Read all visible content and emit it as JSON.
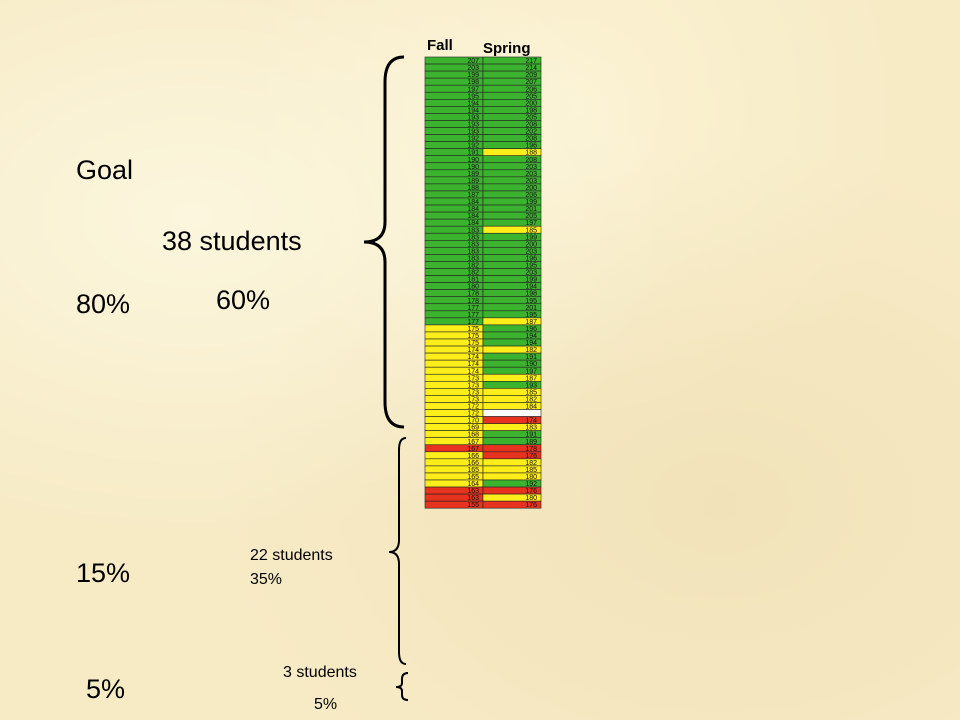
{
  "labels": {
    "goal": "Goal",
    "pct80": "80%",
    "pct15": "15%",
    "pct5": "5%",
    "group1_count": "38 students",
    "group1_pct": "60%",
    "group2_count": "22 students",
    "group2_pct": "35%",
    "group3_count": "3 students",
    "group3_pct": "5%"
  },
  "colors": {
    "green": "#3cb32f",
    "yellow": "#ffee1a",
    "red": "#e6321e",
    "white": "#ffffff",
    "background": "#f7ebc6"
  },
  "chart_data": {
    "type": "table",
    "columns": [
      "Fall",
      "Spring"
    ],
    "rows": [
      {
        "fall": "207",
        "spring": "217",
        "fall_color": "green",
        "spring_color": "green"
      },
      {
        "fall": "203",
        "spring": "214",
        "fall_color": "green",
        "spring_color": "green"
      },
      {
        "fall": "199",
        "spring": "209",
        "fall_color": "green",
        "spring_color": "green"
      },
      {
        "fall": "198",
        "spring": "207",
        "fall_color": "green",
        "spring_color": "green"
      },
      {
        "fall": "197",
        "spring": "206",
        "fall_color": "green",
        "spring_color": "green"
      },
      {
        "fall": "195",
        "spring": "205",
        "fall_color": "green",
        "spring_color": "green"
      },
      {
        "fall": "194",
        "spring": "200",
        "fall_color": "green",
        "spring_color": "green"
      },
      {
        "fall": "194",
        "spring": "198",
        "fall_color": "green",
        "spring_color": "green"
      },
      {
        "fall": "193",
        "spring": "205",
        "fall_color": "green",
        "spring_color": "green"
      },
      {
        "fall": "193",
        "spring": "208",
        "fall_color": "green",
        "spring_color": "green"
      },
      {
        "fall": "193",
        "spring": "202",
        "fall_color": "green",
        "spring_color": "green"
      },
      {
        "fall": "192",
        "spring": "208",
        "fall_color": "green",
        "spring_color": "green"
      },
      {
        "fall": "192",
        "spring": "196",
        "fall_color": "green",
        "spring_color": "green"
      },
      {
        "fall": "191",
        "spring": "188",
        "fall_color": "green",
        "spring_color": "yellow"
      },
      {
        "fall": "190",
        "spring": "208",
        "fall_color": "green",
        "spring_color": "green"
      },
      {
        "fall": "190",
        "spring": "203",
        "fall_color": "green",
        "spring_color": "green"
      },
      {
        "fall": "189",
        "spring": "203",
        "fall_color": "green",
        "spring_color": "green"
      },
      {
        "fall": "189",
        "spring": "203",
        "fall_color": "green",
        "spring_color": "green"
      },
      {
        "fall": "188",
        "spring": "200",
        "fall_color": "green",
        "spring_color": "green"
      },
      {
        "fall": "187",
        "spring": "206",
        "fall_color": "green",
        "spring_color": "green"
      },
      {
        "fall": "184",
        "spring": "199",
        "fall_color": "green",
        "spring_color": "green"
      },
      {
        "fall": "184",
        "spring": "201",
        "fall_color": "green",
        "spring_color": "green"
      },
      {
        "fall": "184",
        "spring": "205",
        "fall_color": "green",
        "spring_color": "green"
      },
      {
        "fall": "184",
        "spring": "197",
        "fall_color": "green",
        "spring_color": "green"
      },
      {
        "fall": "183",
        "spring": "185",
        "fall_color": "green",
        "spring_color": "yellow"
      },
      {
        "fall": "183",
        "spring": "199",
        "fall_color": "green",
        "spring_color": "green"
      },
      {
        "fall": "183",
        "spring": "200",
        "fall_color": "green",
        "spring_color": "green"
      },
      {
        "fall": "183",
        "spring": "203",
        "fall_color": "green",
        "spring_color": "green"
      },
      {
        "fall": "183",
        "spring": "196",
        "fall_color": "green",
        "spring_color": "green"
      },
      {
        "fall": "182",
        "spring": "195",
        "fall_color": "green",
        "spring_color": "green"
      },
      {
        "fall": "182",
        "spring": "203",
        "fall_color": "green",
        "spring_color": "green"
      },
      {
        "fall": "181",
        "spring": "199",
        "fall_color": "green",
        "spring_color": "green"
      },
      {
        "fall": "180",
        "spring": "194",
        "fall_color": "green",
        "spring_color": "green"
      },
      {
        "fall": "178",
        "spring": "198",
        "fall_color": "green",
        "spring_color": "green"
      },
      {
        "fall": "178",
        "spring": "195",
        "fall_color": "green",
        "spring_color": "green"
      },
      {
        "fall": "177",
        "spring": "201",
        "fall_color": "green",
        "spring_color": "green"
      },
      {
        "fall": "177",
        "spring": "195",
        "fall_color": "green",
        "spring_color": "green"
      },
      {
        "fall": "177",
        "spring": "187",
        "fall_color": "green",
        "spring_color": "yellow"
      },
      {
        "fall": "175",
        "spring": "196",
        "fall_color": "yellow",
        "spring_color": "green"
      },
      {
        "fall": "175",
        "spring": "194",
        "fall_color": "yellow",
        "spring_color": "green"
      },
      {
        "fall": "175",
        "spring": "194",
        "fall_color": "yellow",
        "spring_color": "green"
      },
      {
        "fall": "174",
        "spring": "182",
        "fall_color": "yellow",
        "spring_color": "yellow"
      },
      {
        "fall": "174",
        "spring": "191",
        "fall_color": "yellow",
        "spring_color": "green"
      },
      {
        "fall": "174",
        "spring": "190",
        "fall_color": "yellow",
        "spring_color": "green"
      },
      {
        "fall": "174",
        "spring": "197",
        "fall_color": "yellow",
        "spring_color": "green"
      },
      {
        "fall": "173",
        "spring": "187",
        "fall_color": "yellow",
        "spring_color": "yellow"
      },
      {
        "fall": "173",
        "spring": "193",
        "fall_color": "yellow",
        "spring_color": "green"
      },
      {
        "fall": "173",
        "spring": "185",
        "fall_color": "yellow",
        "spring_color": "yellow"
      },
      {
        "fall": "173",
        "spring": "182",
        "fall_color": "yellow",
        "spring_color": "yellow"
      },
      {
        "fall": "172",
        "spring": "184",
        "fall_color": "yellow",
        "spring_color": "yellow"
      },
      {
        "fall": "172",
        "spring": "",
        "fall_color": "yellow",
        "spring_color": "white"
      },
      {
        "fall": "170",
        "spring": "174",
        "fall_color": "yellow",
        "spring_color": "red"
      },
      {
        "fall": "169",
        "spring": "183",
        "fall_color": "yellow",
        "spring_color": "yellow"
      },
      {
        "fall": "168",
        "spring": "191",
        "fall_color": "yellow",
        "spring_color": "green"
      },
      {
        "fall": "167",
        "spring": "189",
        "fall_color": "yellow",
        "spring_color": "green"
      },
      {
        "fall": "167",
        "spring": "178",
        "fall_color": "red",
        "spring_color": "red"
      },
      {
        "fall": "166",
        "spring": "176",
        "fall_color": "yellow",
        "spring_color": "red"
      },
      {
        "fall": "166",
        "spring": "182",
        "fall_color": "yellow",
        "spring_color": "yellow"
      },
      {
        "fall": "165",
        "spring": "185",
        "fall_color": "yellow",
        "spring_color": "yellow"
      },
      {
        "fall": "165",
        "spring": "180",
        "fall_color": "yellow",
        "spring_color": "yellow"
      },
      {
        "fall": "164",
        "spring": "192",
        "fall_color": "yellow",
        "spring_color": "green"
      },
      {
        "fall": "163",
        "spring": "176",
        "fall_color": "red",
        "spring_color": "red"
      },
      {
        "fall": "163",
        "spring": "180",
        "fall_color": "red",
        "spring_color": "yellow"
      },
      {
        "fall": "155",
        "spring": "176",
        "fall_color": "red",
        "spring_color": "red"
      }
    ]
  }
}
